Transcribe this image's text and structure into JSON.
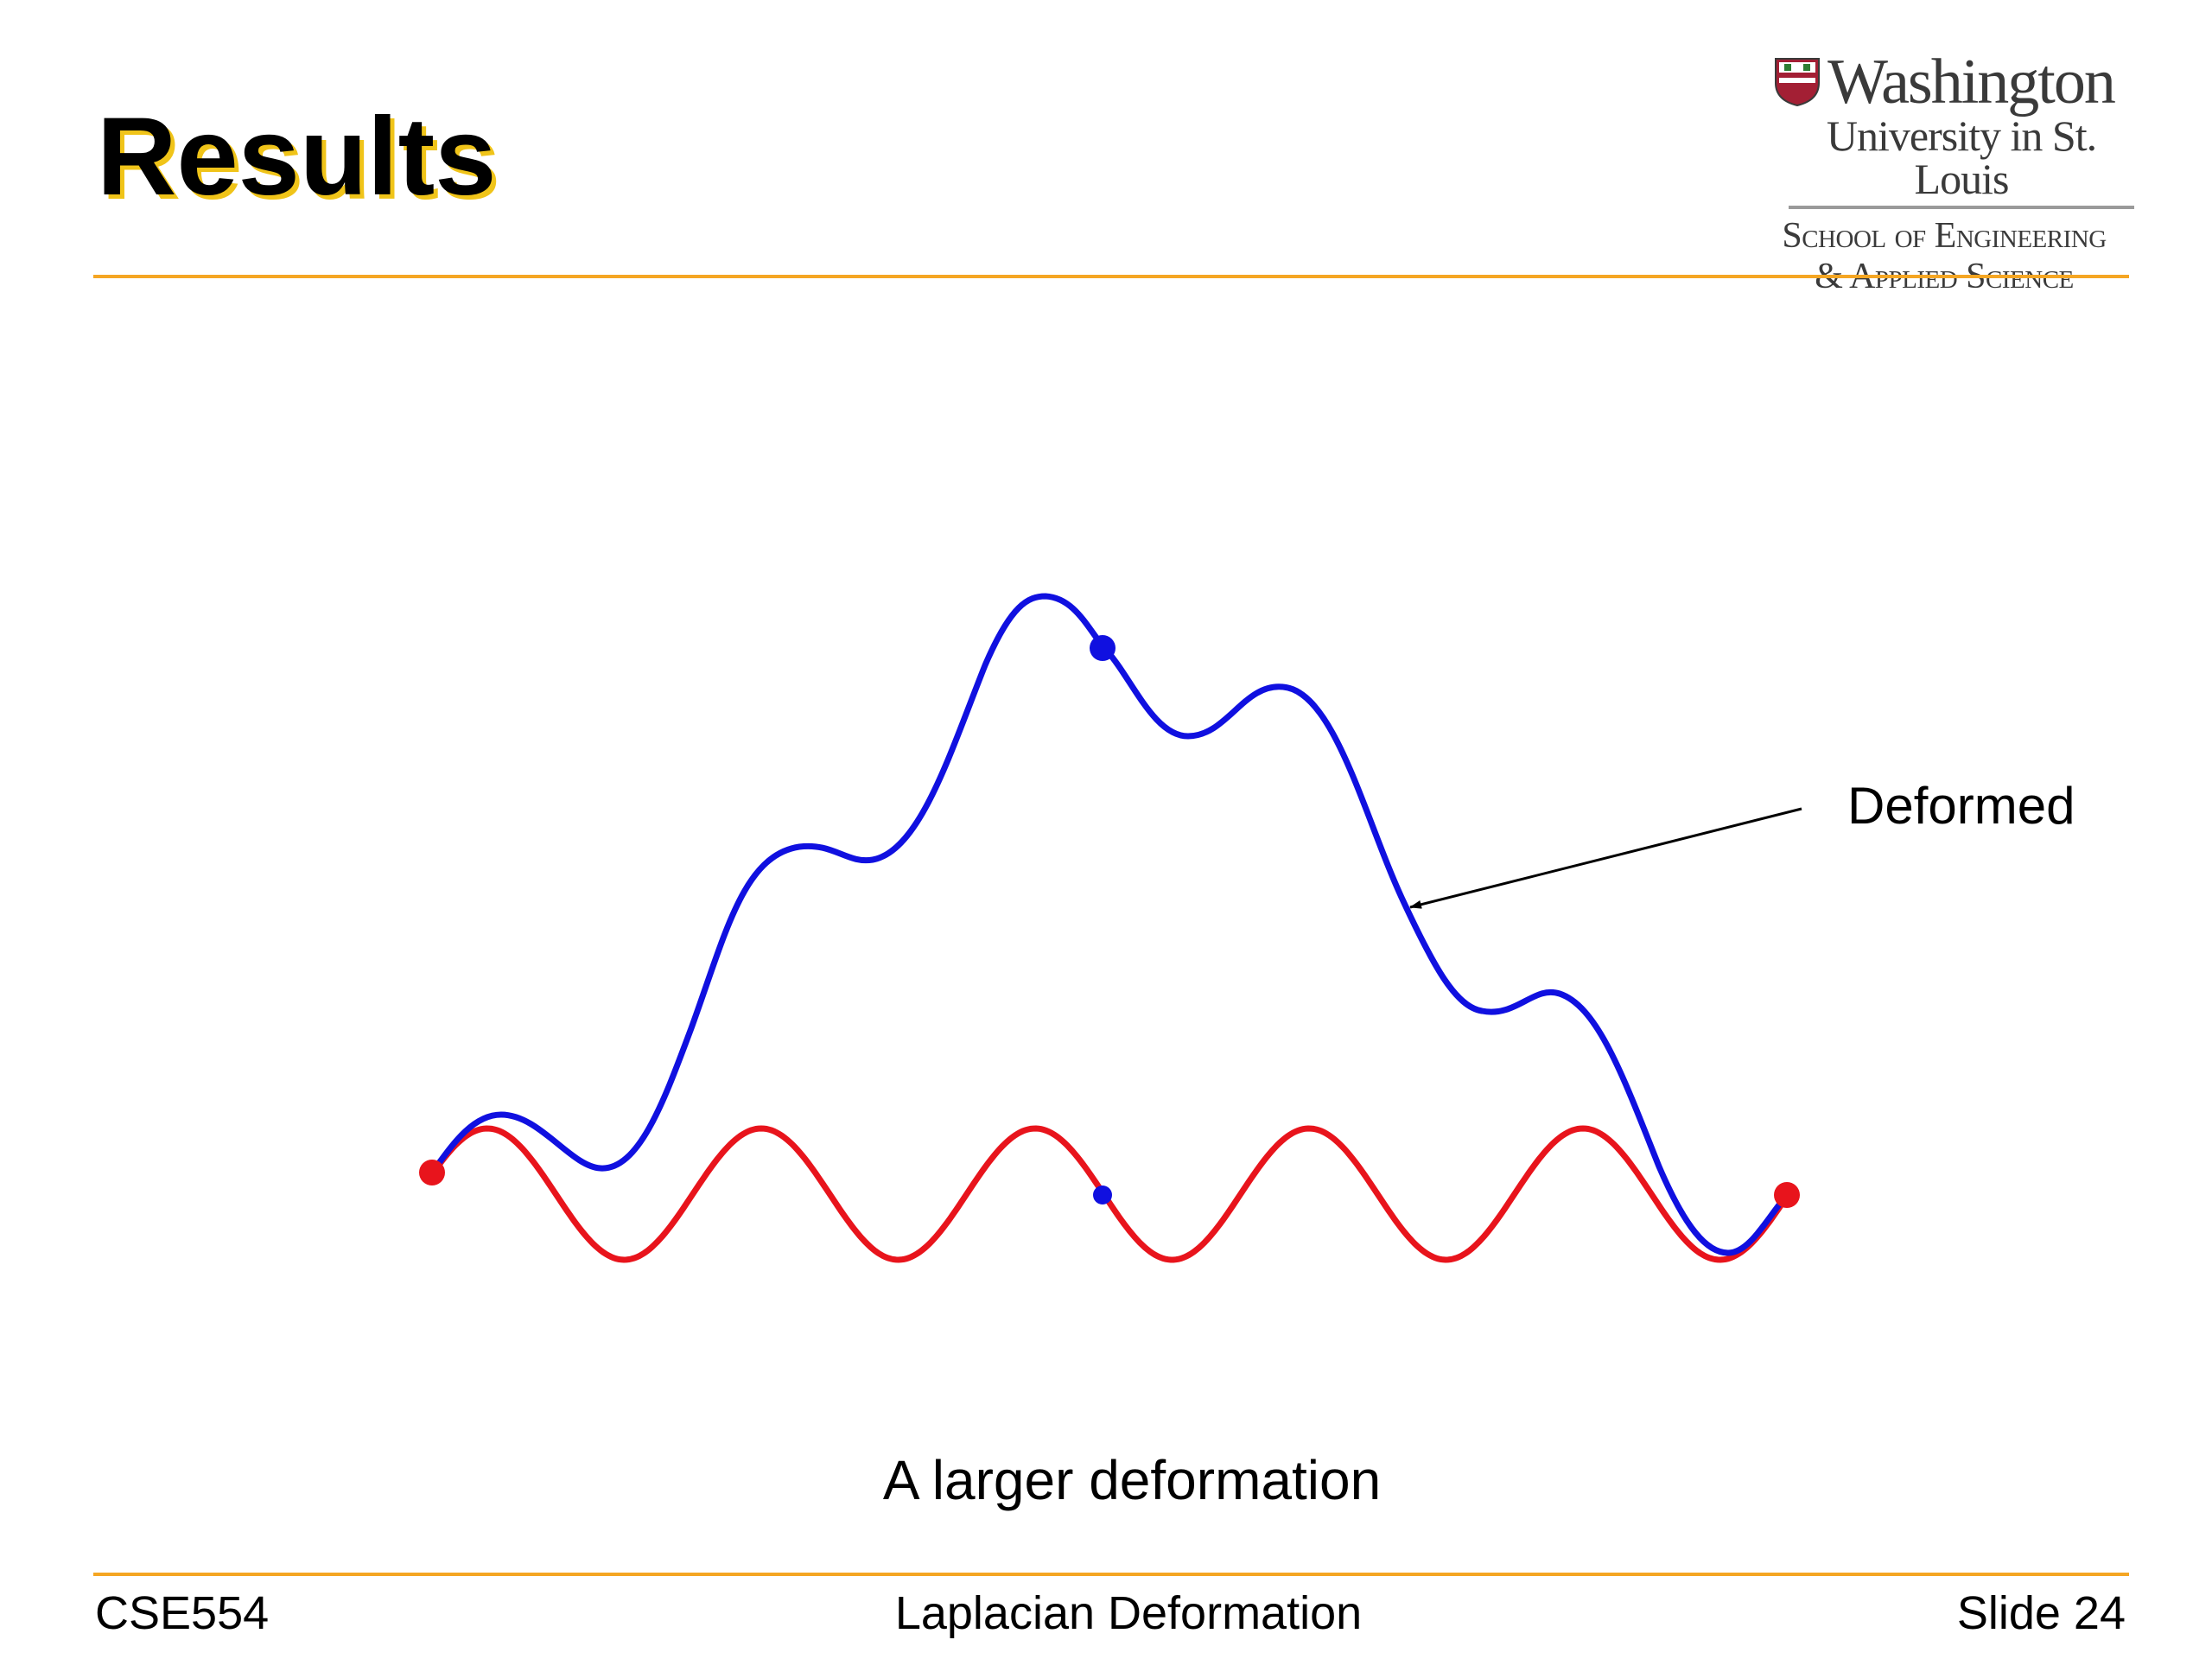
{
  "slide": {
    "title": "Results",
    "caption": "A larger deformation"
  },
  "logo": {
    "name": "Washington",
    "sub": "University in St. Louis",
    "school_line1": "School of Engineering",
    "school_line2": "& Applied Science"
  },
  "figure": {
    "annotation": "Deformed",
    "original_color": "#e8141c",
    "deformed_color": "#1010e0"
  },
  "footer": {
    "left": "CSE554",
    "center": "Laplacian Deformation",
    "right": "Slide 24"
  },
  "colors": {
    "accent_rule": "#f5a623",
    "title_shadow": "#f0c419"
  }
}
